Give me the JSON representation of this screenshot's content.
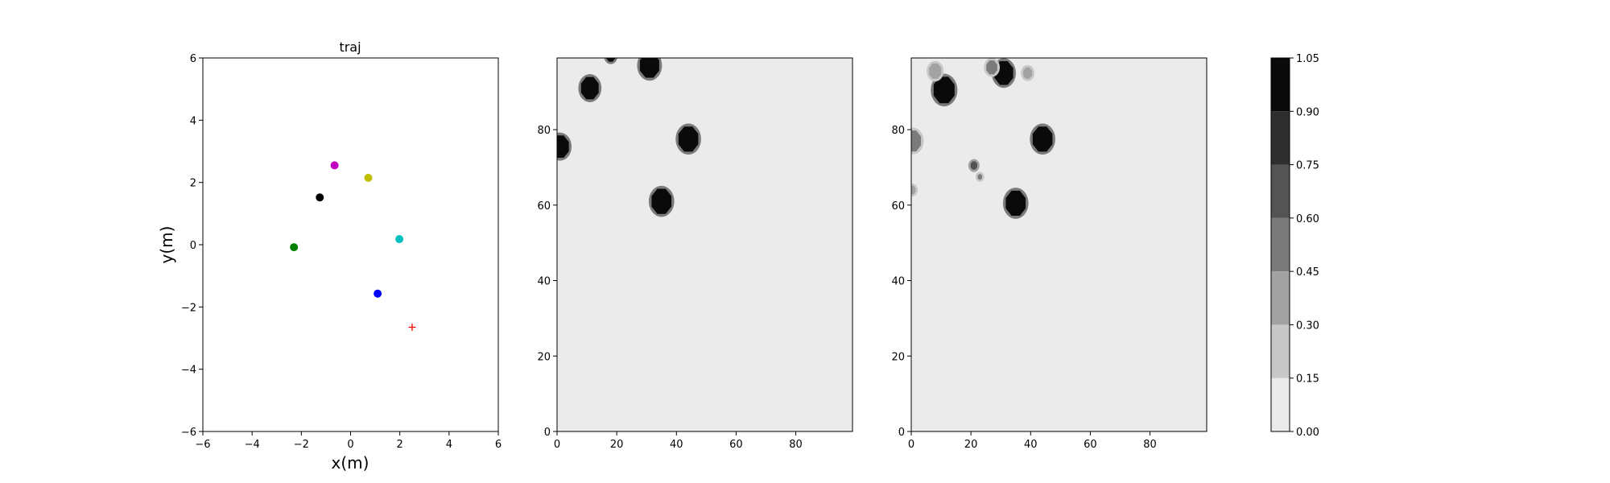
{
  "chart_data": [
    {
      "type": "scatter",
      "title": "traj",
      "xlabel": "x(m)",
      "ylabel": "y(m)",
      "xlim": [
        -6,
        6
      ],
      "ylim": [
        -6,
        6
      ],
      "xticks": [
        "−6",
        "−4",
        "−2",
        "0",
        "2",
        "4",
        "6"
      ],
      "yticks": [
        "−6",
        "−4",
        "−2",
        "0",
        "2",
        "4",
        "6"
      ],
      "grid": false,
      "points": [
        {
          "x": -0.65,
          "y": 2.55,
          "color": "#bf00bf",
          "marker": "circle"
        },
        {
          "x": 0.72,
          "y": 2.15,
          "color": "#bfbf00",
          "marker": "circle"
        },
        {
          "x": -1.25,
          "y": 1.52,
          "color": "#000000",
          "marker": "circle"
        },
        {
          "x": 1.98,
          "y": 0.18,
          "color": "#00bfbf",
          "marker": "circle"
        },
        {
          "x": -2.3,
          "y": -0.08,
          "color": "#008000",
          "marker": "circle"
        },
        {
          "x": 1.1,
          "y": -1.57,
          "color": "#0000ff",
          "marker": "circle"
        },
        {
          "x": 2.5,
          "y": -2.65,
          "color": "#ff0000",
          "marker": "plus"
        }
      ]
    },
    {
      "type": "heatmap",
      "title": "",
      "xlim": [
        0,
        99
      ],
      "ylim": [
        0,
        99
      ],
      "xticks": [
        "0",
        "20",
        "40",
        "60",
        "80"
      ],
      "yticks": [
        "0",
        "20",
        "40",
        "60",
        "80"
      ],
      "background_level": 0.05,
      "blobs": [
        {
          "cx": 11,
          "cy": 91,
          "r": 3.2,
          "level": 1.0
        },
        {
          "cx": 31,
          "cy": 97,
          "r": 3.5,
          "level": 1.0
        },
        {
          "cx": 18,
          "cy": 99.5,
          "r": 1.6,
          "level": 0.9
        },
        {
          "cx": 1,
          "cy": 75.5,
          "r": 3.2,
          "level": 1.0
        },
        {
          "cx": 44,
          "cy": 77.5,
          "r": 3.6,
          "level": 1.0
        },
        {
          "cx": 35,
          "cy": 61,
          "r": 3.6,
          "level": 1.0
        }
      ]
    },
    {
      "type": "heatmap",
      "title": "",
      "xlim": [
        0,
        99
      ],
      "ylim": [
        0,
        99
      ],
      "xticks": [
        "0",
        "20",
        "40",
        "60",
        "80"
      ],
      "yticks": [
        "0",
        "20",
        "40",
        "60",
        "80"
      ],
      "background_level": 0.05,
      "blobs": [
        {
          "cx": 11,
          "cy": 90.5,
          "r": 3.8,
          "level": 1.0
        },
        {
          "cx": 8,
          "cy": 95.5,
          "r": 2.2,
          "level": 0.35
        },
        {
          "cx": 31,
          "cy": 95,
          "r": 3.4,
          "level": 1.0
        },
        {
          "cx": 27,
          "cy": 96.5,
          "r": 2.0,
          "level": 0.5
        },
        {
          "cx": 39,
          "cy": 95,
          "r": 1.6,
          "level": 0.3
        },
        {
          "cx": 0.5,
          "cy": 77,
          "r": 3.0,
          "level": 0.5
        },
        {
          "cx": 0.3,
          "cy": 64,
          "r": 1.2,
          "level": 0.3
        },
        {
          "cx": 44,
          "cy": 77.5,
          "r": 3.6,
          "level": 1.0
        },
        {
          "cx": 35,
          "cy": 60.5,
          "r": 3.6,
          "level": 1.0
        },
        {
          "cx": 21,
          "cy": 70.5,
          "r": 1.2,
          "level": 0.6
        },
        {
          "cx": 23,
          "cy": 67.5,
          "r": 0.8,
          "level": 0.5
        }
      ]
    }
  ],
  "colorbar": {
    "levels": [
      0.0,
      0.15,
      0.3,
      0.45,
      0.6,
      0.75,
      0.9,
      1.05
    ],
    "labels": [
      "0.00",
      "0.15",
      "0.30",
      "0.45",
      "0.60",
      "0.75",
      "0.90",
      "1.05"
    ],
    "colors": [
      "#ebebeb",
      "#c8c8c8",
      "#a2a2a2",
      "#7b7b7b",
      "#545454",
      "#2e2e2e",
      "#0a0a0a"
    ]
  }
}
